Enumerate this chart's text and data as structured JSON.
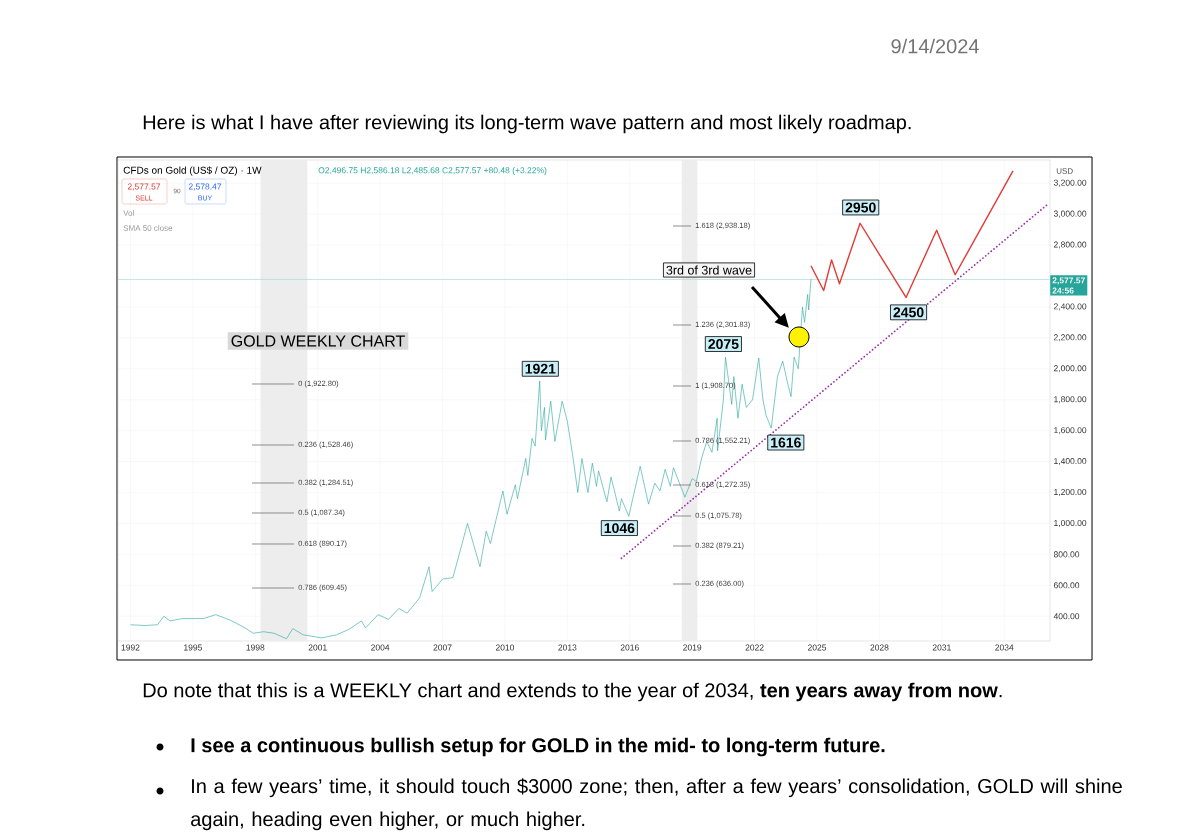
{
  "chart_data": {
    "type": "line",
    "title": "GOLD WEEKLY CHART",
    "subtitle": "CFDs on Gold (US$ / OZ) · 1W",
    "xlim": [
      1991.4,
      2036.2
    ],
    "xticks": [
      1992,
      1995,
      1998,
      2001,
      2004,
      2007,
      2010,
      2013,
      2016,
      2019,
      2022,
      2025,
      2028,
      2031,
      2034
    ],
    "ylim": [
      240,
      3350
    ],
    "yticks": [
      {
        "value": 400,
        "label": "400.00"
      },
      {
        "value": 600,
        "label": "600.00"
      },
      {
        "value": 800,
        "label": "800.00"
      },
      {
        "value": 1000,
        "label": "1,000.00"
      },
      {
        "value": 1200,
        "label": "1,200.00"
      },
      {
        "value": 1400,
        "label": "1,400.00"
      },
      {
        "value": 1600,
        "label": "1,600.00"
      },
      {
        "value": 1800,
        "label": "1,800.00"
      },
      {
        "value": 2000,
        "label": "2,000.00"
      },
      {
        "value": 2200,
        "label": "2,200.00"
      },
      {
        "value": 2400,
        "label": "2,400.00"
      },
      {
        "value": 2800,
        "label": "2,800.00"
      },
      {
        "value": 3000,
        "label": "3,000.00"
      },
      {
        "value": 3200,
        "label": "3,200.00"
      }
    ],
    "grid": true,
    "series": [
      {
        "color": "#26a69a",
        "x": [
          1992.0,
          1992.7,
          1993.3,
          1993.6,
          1993.9,
          1994.5,
          1995.5,
          1996.1,
          1996.8,
          1997.5,
          1997.9,
          1998.4,
          1998.9,
          1999.5,
          1999.8,
          2000.3,
          2001.2,
          2001.9,
          2002.5,
          2003.1,
          2003.3,
          2003.9,
          2004.4,
          2004.9,
          2005.3,
          2005.9,
          2006.35,
          2006.5,
          2007.0,
          2007.5,
          2008.2,
          2008.8,
          2009.1,
          2009.3,
          2009.9,
          2010.1,
          2010.5,
          2010.6,
          2011.0,
          2011.1,
          2011.3,
          2011.45,
          2011.67,
          2011.75,
          2011.9,
          2011.95,
          2012.2,
          2012.4,
          2012.75,
          2013.0,
          2013.3,
          2013.5,
          2013.7,
          2013.99,
          2014.2,
          2014.4,
          2014.5,
          2014.9,
          2015.1,
          2015.5,
          2015.6,
          2015.95,
          2016.5,
          2016.9,
          2017.2,
          2017.45,
          2017.7,
          2017.95,
          2018.1,
          2018.65,
          2019.0,
          2019.2,
          2019.45,
          2019.7,
          2019.95,
          2020.2,
          2020.22,
          2020.5,
          2020.6,
          2020.9,
          2021.0,
          2021.2,
          2021.4,
          2021.6,
          2021.9,
          2022.2,
          2022.4,
          2022.55,
          2022.8,
          2023.1,
          2023.35,
          2023.6,
          2023.75,
          2023.9,
          2024.1,
          2024.2,
          2024.3,
          2024.4,
          2024.55,
          2024.6,
          2024.71
        ],
        "values": [
          345,
          340,
          345,
          400,
          370,
          385,
          385,
          410,
          375,
          325,
          290,
          300,
          290,
          255,
          320,
          280,
          260,
          280,
          315,
          370,
          325,
          410,
          380,
          450,
          420,
          520,
          720,
          560,
          640,
          650,
          1000,
          720,
          950,
          870,
          1210,
          1060,
          1250,
          1160,
          1420,
          1310,
          1550,
          1500,
          1921,
          1600,
          1750,
          1540,
          1790,
          1530,
          1790,
          1660,
          1400,
          1200,
          1420,
          1200,
          1390,
          1240,
          1340,
          1140,
          1300,
          1080,
          1160,
          1046,
          1370,
          1125,
          1260,
          1210,
          1350,
          1240,
          1360,
          1170,
          1290,
          1270,
          1420,
          1530,
          1460,
          1680,
          1470,
          1800,
          2075,
          1770,
          1950,
          1680,
          1900,
          1750,
          1800,
          2070,
          1800,
          1700,
          1616,
          1950,
          2050,
          1900,
          1820,
          2075,
          2000,
          2200,
          2400,
          2300,
          2480,
          2380,
          2580
        ]
      },
      {
        "color": "#e53935",
        "x": [
          2024.71,
          2025.32,
          2025.7,
          2026.08,
          2027.07,
          2029.28,
          2030.75,
          2031.64,
          2034.42
        ],
        "values": [
          2666,
          2506,
          2704,
          2550,
          2941,
          2461,
          2896,
          2608,
          3280
        ]
      },
      {
        "color": "#9c27b0",
        "line_style": "dotted",
        "x": [
          2015.6,
          2036.14
        ],
        "values": [
          775,
          3069
        ]
      }
    ],
    "bands": [
      {
        "axis": "x",
        "from": 1998.25,
        "to": 2000.5,
        "color": "#ededed"
      },
      {
        "axis": "x",
        "from": 2018.5,
        "to": 2019.25,
        "color": "#ededed"
      }
    ],
    "ref_lines": [
      {
        "axis": "y",
        "value": 2577.57,
        "label": "2,577.57",
        "color": "#b2dfdb"
      }
    ],
    "annotations": [
      "9/14/2024",
      "Here is what I have after reviewing its long-term wave pattern and most likely roadmap.",
      "O2,496.75 H2,586.18 L2,485.68 C2,577.57 +80.48 (+3.22%)",
      "2,577.57",
      "SELL",
      "90",
      "2,578.47",
      "BUY",
      "Vol",
      "SMA 50 close",
      "USD",
      "24:56",
      "Do note that this is a WEEKLY chart and extends to the year of 2034, **ten years away from now**.",
      "I see a continuous bullish setup for GOLD in the mid- to long-term future.",
      "In a few years’ time, it should touch $3000 zone; then, after a few years’ consolidation, GOLD will shine again, heading even higher, or much higher.",
      "0 (1,922.80)",
      "0.236 (1,528.46)",
      "0.382 (1,284.51)",
      "0.5 (1,087.34)",
      "0.618 (890.17)",
      "0.786 (609.45)",
      "1.618 (2,938.18)",
      "1.236 (2,301.83)",
      "1 (1,908.70)",
      "0.786 (1,552.21)",
      "0.618 (1,272.35)",
      "0.5 (1,075.78)",
      "0.382 (879.21)",
      "0.236 (636.00)",
      "3rd of 3rd wave",
      {
        "text": "1921",
        "x": 2011.7,
        "y": 2000
      },
      {
        "text": "1046",
        "x": 2015.5,
        "y": 970
      },
      {
        "text": "2075",
        "x": 2020.5,
        "y": 2160
      },
      {
        "text": "1616",
        "x": 2023.5,
        "y": 1523
      },
      {
        "text": "2950",
        "x": 2027.1,
        "y": 3043
      },
      {
        "text": "2450",
        "x": 2029.4,
        "y": 2365
      }
    ]
  }
}
